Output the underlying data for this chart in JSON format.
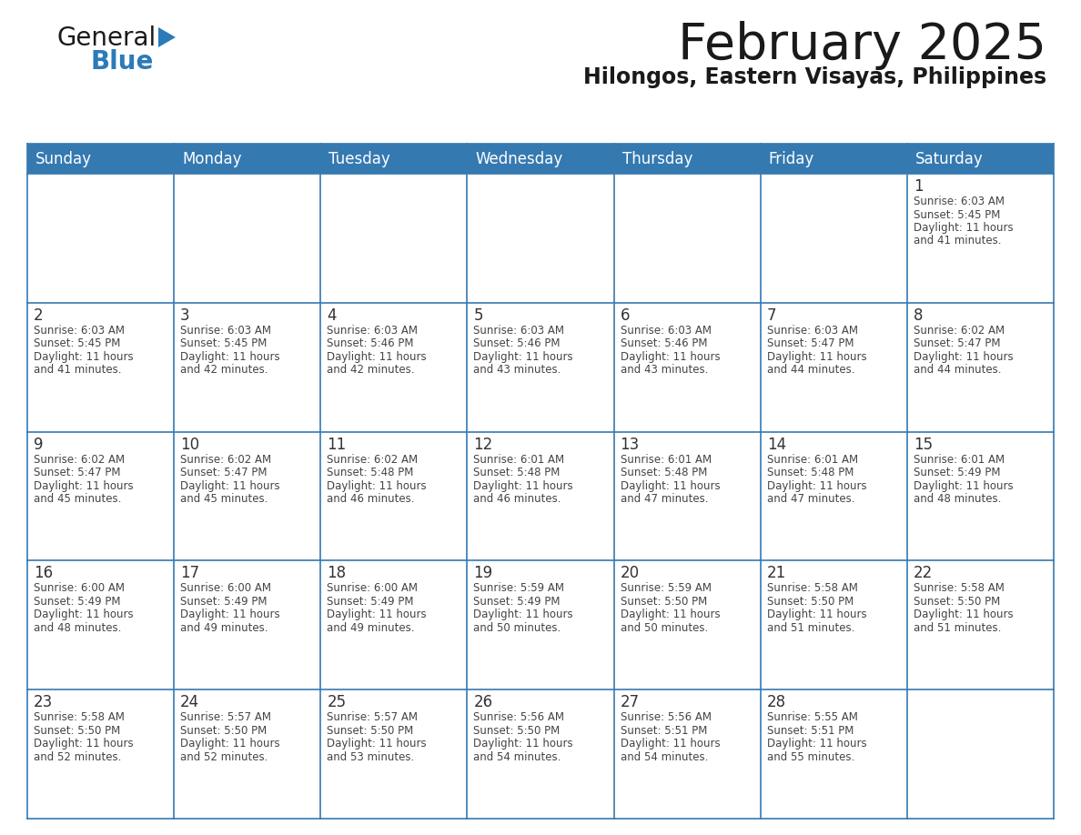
{
  "title": "February 2025",
  "subtitle": "Hilongos, Eastern Visayas, Philippines",
  "header_bg": "#3579B1",
  "header_text_color": "#FFFFFF",
  "days_of_week": [
    "Sunday",
    "Monday",
    "Tuesday",
    "Wednesday",
    "Thursday",
    "Friday",
    "Saturday"
  ],
  "cell_bg": "#FFFFFF",
  "cell_border_color": "#3579B1",
  "day_number_color": "#333333",
  "info_text_color": "#444444",
  "calendar_data": [
    [
      null,
      null,
      null,
      null,
      null,
      null,
      {
        "day": "1",
        "sunrise": "6:03 AM",
        "sunset": "5:45 PM",
        "daylight1": "11 hours",
        "daylight2": "and 41 minutes."
      }
    ],
    [
      {
        "day": "2",
        "sunrise": "6:03 AM",
        "sunset": "5:45 PM",
        "daylight1": "11 hours",
        "daylight2": "and 41 minutes."
      },
      {
        "day": "3",
        "sunrise": "6:03 AM",
        "sunset": "5:45 PM",
        "daylight1": "11 hours",
        "daylight2": "and 42 minutes."
      },
      {
        "day": "4",
        "sunrise": "6:03 AM",
        "sunset": "5:46 PM",
        "daylight1": "11 hours",
        "daylight2": "and 42 minutes."
      },
      {
        "day": "5",
        "sunrise": "6:03 AM",
        "sunset": "5:46 PM",
        "daylight1": "11 hours",
        "daylight2": "and 43 minutes."
      },
      {
        "day": "6",
        "sunrise": "6:03 AM",
        "sunset": "5:46 PM",
        "daylight1": "11 hours",
        "daylight2": "and 43 minutes."
      },
      {
        "day": "7",
        "sunrise": "6:03 AM",
        "sunset": "5:47 PM",
        "daylight1": "11 hours",
        "daylight2": "and 44 minutes."
      },
      {
        "day": "8",
        "sunrise": "6:02 AM",
        "sunset": "5:47 PM",
        "daylight1": "11 hours",
        "daylight2": "and 44 minutes."
      }
    ],
    [
      {
        "day": "9",
        "sunrise": "6:02 AM",
        "sunset": "5:47 PM",
        "daylight1": "11 hours",
        "daylight2": "and 45 minutes."
      },
      {
        "day": "10",
        "sunrise": "6:02 AM",
        "sunset": "5:47 PM",
        "daylight1": "11 hours",
        "daylight2": "and 45 minutes."
      },
      {
        "day": "11",
        "sunrise": "6:02 AM",
        "sunset": "5:48 PM",
        "daylight1": "11 hours",
        "daylight2": "and 46 minutes."
      },
      {
        "day": "12",
        "sunrise": "6:01 AM",
        "sunset": "5:48 PM",
        "daylight1": "11 hours",
        "daylight2": "and 46 minutes."
      },
      {
        "day": "13",
        "sunrise": "6:01 AM",
        "sunset": "5:48 PM",
        "daylight1": "11 hours",
        "daylight2": "and 47 minutes."
      },
      {
        "day": "14",
        "sunrise": "6:01 AM",
        "sunset": "5:48 PM",
        "daylight1": "11 hours",
        "daylight2": "and 47 minutes."
      },
      {
        "day": "15",
        "sunrise": "6:01 AM",
        "sunset": "5:49 PM",
        "daylight1": "11 hours",
        "daylight2": "and 48 minutes."
      }
    ],
    [
      {
        "day": "16",
        "sunrise": "6:00 AM",
        "sunset": "5:49 PM",
        "daylight1": "11 hours",
        "daylight2": "and 48 minutes."
      },
      {
        "day": "17",
        "sunrise": "6:00 AM",
        "sunset": "5:49 PM",
        "daylight1": "11 hours",
        "daylight2": "and 49 minutes."
      },
      {
        "day": "18",
        "sunrise": "6:00 AM",
        "sunset": "5:49 PM",
        "daylight1": "11 hours",
        "daylight2": "and 49 minutes."
      },
      {
        "day": "19",
        "sunrise": "5:59 AM",
        "sunset": "5:49 PM",
        "daylight1": "11 hours",
        "daylight2": "and 50 minutes."
      },
      {
        "day": "20",
        "sunrise": "5:59 AM",
        "sunset": "5:50 PM",
        "daylight1": "11 hours",
        "daylight2": "and 50 minutes."
      },
      {
        "day": "21",
        "sunrise": "5:58 AM",
        "sunset": "5:50 PM",
        "daylight1": "11 hours",
        "daylight2": "and 51 minutes."
      },
      {
        "day": "22",
        "sunrise": "5:58 AM",
        "sunset": "5:50 PM",
        "daylight1": "11 hours",
        "daylight2": "and 51 minutes."
      }
    ],
    [
      {
        "day": "23",
        "sunrise": "5:58 AM",
        "sunset": "5:50 PM",
        "daylight1": "11 hours",
        "daylight2": "and 52 minutes."
      },
      {
        "day": "24",
        "sunrise": "5:57 AM",
        "sunset": "5:50 PM",
        "daylight1": "11 hours",
        "daylight2": "and 52 minutes."
      },
      {
        "day": "25",
        "sunrise": "5:57 AM",
        "sunset": "5:50 PM",
        "daylight1": "11 hours",
        "daylight2": "and 53 minutes."
      },
      {
        "day": "26",
        "sunrise": "5:56 AM",
        "sunset": "5:50 PM",
        "daylight1": "11 hours",
        "daylight2": "and 54 minutes."
      },
      {
        "day": "27",
        "sunrise": "5:56 AM",
        "sunset": "5:51 PM",
        "daylight1": "11 hours",
        "daylight2": "and 54 minutes."
      },
      {
        "day": "28",
        "sunrise": "5:55 AM",
        "sunset": "5:51 PM",
        "daylight1": "11 hours",
        "daylight2": "and 55 minutes."
      },
      null
    ]
  ],
  "logo_general_color": "#1A1A1A",
  "logo_blue_color": "#2B7BB9",
  "logo_triangle_color": "#2B7BB9",
  "title_fontsize": 40,
  "subtitle_fontsize": 17,
  "header_fontsize": 12,
  "day_num_fontsize": 12,
  "info_fontsize": 8.5
}
